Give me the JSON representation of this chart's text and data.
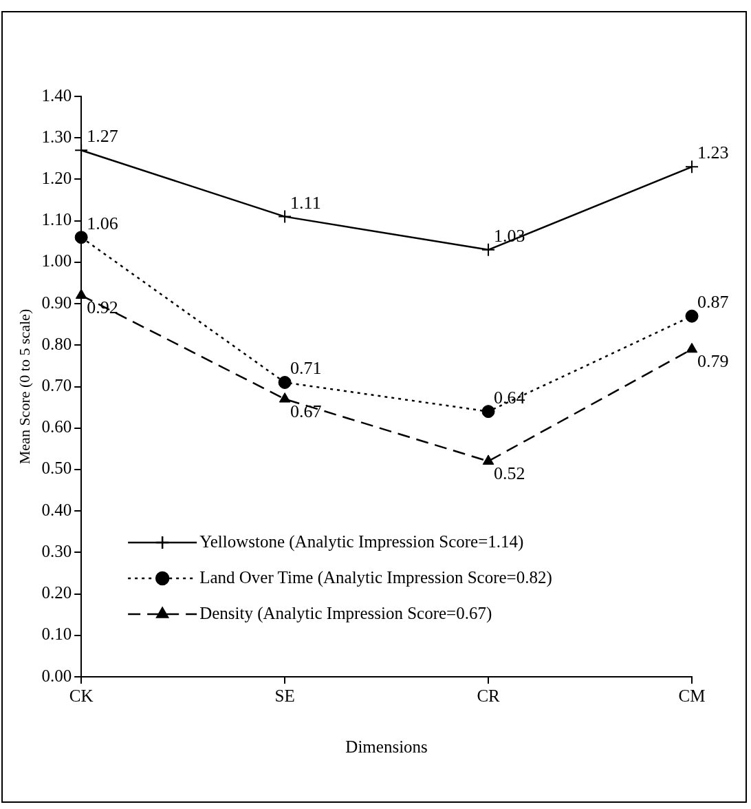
{
  "chart_data": {
    "type": "line",
    "xlabel": "Dimensions",
    "ylabel": "Mean Score (0 to 5 scale)",
    "categories": [
      "CK",
      "SE",
      "CR",
      "CM"
    ],
    "ylim": [
      0,
      1.4
    ],
    "yticks": [
      {
        "value": 0,
        "label": "0.00"
      },
      {
        "value": 0.1,
        "label": "0.10"
      },
      {
        "value": 0.2,
        "label": "0.20"
      },
      {
        "value": 0.3,
        "label": "0.30"
      },
      {
        "value": 0.4,
        "label": "0.40"
      },
      {
        "value": 0.5,
        "label": "0.50"
      },
      {
        "value": 0.6,
        "label": "0.60"
      },
      {
        "value": 0.7,
        "label": "0.70"
      },
      {
        "value": 0.8,
        "label": "0.80"
      },
      {
        "value": 0.9,
        "label": "0.90"
      },
      {
        "value": 1.0,
        "label": "1.00"
      },
      {
        "value": 1.1,
        "label": "1.10"
      },
      {
        "value": 1.2,
        "label": "1.20"
      },
      {
        "value": 1.3,
        "label": "1.30"
      },
      {
        "value": 1.4,
        "label": "1.40"
      }
    ],
    "series": [
      {
        "name": "Yellowstone (Analytic Impression Score=1.14)",
        "color": "#000000",
        "marker": "cross",
        "line_style": "solid",
        "values": [
          1.27,
          1.11,
          1.03,
          1.23
        ]
      },
      {
        "name": "Land Over Time (Analytic Impression Score=0.82)",
        "color": "#000000",
        "marker": "circle",
        "line_style": "dotted",
        "values": [
          1.06,
          0.71,
          0.64,
          0.87
        ]
      },
      {
        "name": "Density (Analytic Impression Score=0.67)",
        "color": "#000000",
        "marker": "triangle",
        "line_style": "dashed",
        "values": [
          0.92,
          0.67,
          0.52,
          0.79
        ]
      }
    ],
    "data_labels": true,
    "grid": false,
    "legend": "bottom left"
  }
}
